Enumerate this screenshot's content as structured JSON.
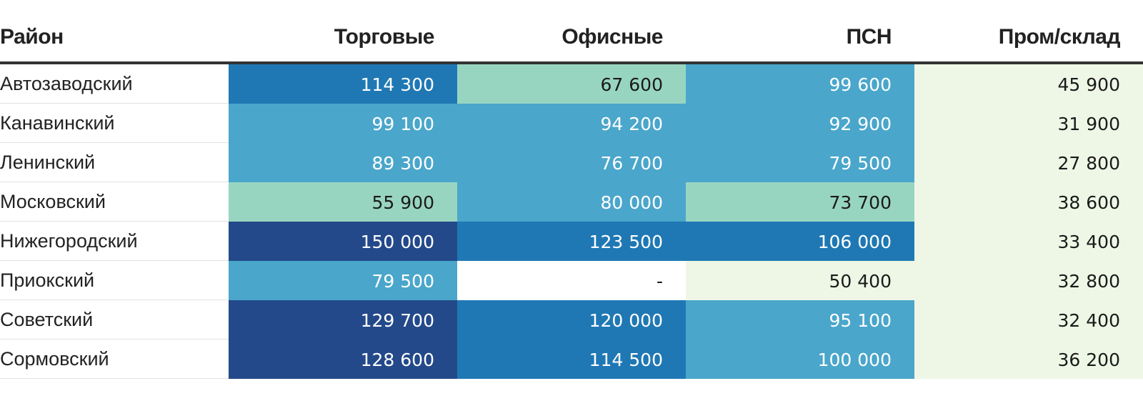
{
  "chart_data": {
    "type": "table",
    "columns": [
      "Район",
      "Торговые",
      "Офисные",
      "ПСН",
      "Пром/склад"
    ],
    "rows": [
      {
        "district": "Автозаводский",
        "cells": [
          {
            "text": "114 300",
            "value": 114300,
            "color": "#1f78b4",
            "fg": "#ffffff"
          },
          {
            "text": "67 600",
            "value": 67600,
            "color": "#98d5c1",
            "fg": "#1a1a1a"
          },
          {
            "text": "99 600",
            "value": 99600,
            "color": "#4aa6cb",
            "fg": "#ffffff"
          },
          {
            "text": "45 900",
            "value": 45900,
            "color": "#eef7e6",
            "fg": "#1a1a1a"
          }
        ]
      },
      {
        "district": "Канавинский",
        "cells": [
          {
            "text": "99 100",
            "value": 99100,
            "color": "#4aa6cb",
            "fg": "#ffffff"
          },
          {
            "text": "94 200",
            "value": 94200,
            "color": "#4aa6cb",
            "fg": "#ffffff"
          },
          {
            "text": "92 900",
            "value": 92900,
            "color": "#4aa6cb",
            "fg": "#ffffff"
          },
          {
            "text": "31 900",
            "value": 31900,
            "color": "#eef7e6",
            "fg": "#1a1a1a"
          }
        ]
      },
      {
        "district": "Ленинский",
        "cells": [
          {
            "text": "89 300",
            "value": 89300,
            "color": "#4aa6cb",
            "fg": "#ffffff"
          },
          {
            "text": "76 700",
            "value": 76700,
            "color": "#4aa6cb",
            "fg": "#ffffff"
          },
          {
            "text": "79 500",
            "value": 79500,
            "color": "#4aa6cb",
            "fg": "#ffffff"
          },
          {
            "text": "27 800",
            "value": 27800,
            "color": "#eef7e6",
            "fg": "#1a1a1a"
          }
        ]
      },
      {
        "district": "Московский",
        "cells": [
          {
            "text": "55 900",
            "value": 55900,
            "color": "#98d5c1",
            "fg": "#1a1a1a"
          },
          {
            "text": "80 000",
            "value": 80000,
            "color": "#4aa6cb",
            "fg": "#ffffff"
          },
          {
            "text": "73 700",
            "value": 73700,
            "color": "#98d5c1",
            "fg": "#1a1a1a"
          },
          {
            "text": "38 600",
            "value": 38600,
            "color": "#eef7e6",
            "fg": "#1a1a1a"
          }
        ]
      },
      {
        "district": "Нижегородский",
        "cells": [
          {
            "text": "150 000",
            "value": 150000,
            "color": "#23498a",
            "fg": "#ffffff"
          },
          {
            "text": "123 500",
            "value": 123500,
            "color": "#1f78b4",
            "fg": "#ffffff"
          },
          {
            "text": "106 000",
            "value": 106000,
            "color": "#1f78b4",
            "fg": "#ffffff"
          },
          {
            "text": "33 400",
            "value": 33400,
            "color": "#eef7e6",
            "fg": "#1a1a1a"
          }
        ]
      },
      {
        "district": "Приокский",
        "cells": [
          {
            "text": "79 500",
            "value": 79500,
            "color": "#4aa6cb",
            "fg": "#ffffff"
          },
          {
            "text": "-",
            "value": null,
            "color": "#ffffff",
            "fg": "#1a1a1a"
          },
          {
            "text": "50 400",
            "value": 50400,
            "color": "#eef7e6",
            "fg": "#1a1a1a"
          },
          {
            "text": "32 800",
            "value": 32800,
            "color": "#eef7e6",
            "fg": "#1a1a1a"
          }
        ]
      },
      {
        "district": "Советский",
        "cells": [
          {
            "text": "129 700",
            "value": 129700,
            "color": "#23498a",
            "fg": "#ffffff"
          },
          {
            "text": "120 000",
            "value": 120000,
            "color": "#1f78b4",
            "fg": "#ffffff"
          },
          {
            "text": "95 100",
            "value": 95100,
            "color": "#4aa6cb",
            "fg": "#ffffff"
          },
          {
            "text": "32 400",
            "value": 32400,
            "color": "#eef7e6",
            "fg": "#1a1a1a"
          }
        ]
      },
      {
        "district": "Сормовский",
        "cells": [
          {
            "text": "128 600",
            "value": 128600,
            "color": "#23498a",
            "fg": "#ffffff"
          },
          {
            "text": "114 500",
            "value": 114500,
            "color": "#1f78b4",
            "fg": "#ffffff"
          },
          {
            "text": "100 000",
            "value": 100000,
            "color": "#4aa6cb",
            "fg": "#ffffff"
          },
          {
            "text": "36 200",
            "value": 36200,
            "color": "#eef7e6",
            "fg": "#1a1a1a"
          }
        ]
      }
    ]
  }
}
